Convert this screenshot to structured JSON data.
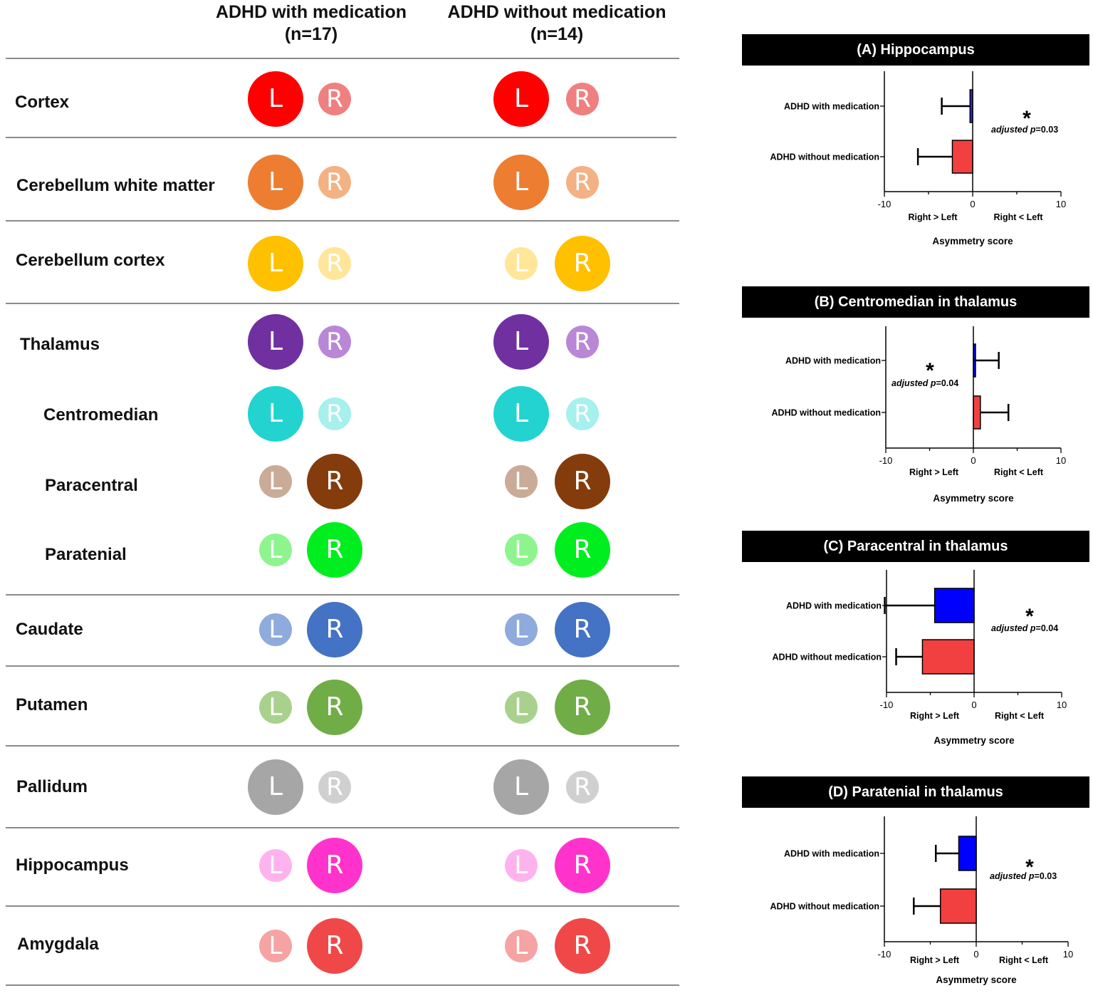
{
  "table": {
    "columns": [
      {
        "name": "ADHD with medication",
        "n": "(n=17)"
      },
      {
        "name": "ADHD without medication",
        "n": "(n=14)"
      }
    ],
    "rows": [
      {
        "region": "Cortex",
        "with": [
          "L",
          "R"
        ],
        "without": [
          "L",
          "R"
        ]
      },
      {
        "region": "Cerebellum white matter",
        "with": [
          "L",
          "R"
        ],
        "without": [
          "L",
          "R"
        ]
      },
      {
        "region": "Cerebellum cortex",
        "with": [
          "L",
          "R"
        ],
        "without": [
          "L",
          "R"
        ]
      },
      {
        "region": "Thalamus",
        "with": [
          "L",
          "R"
        ],
        "without": [
          "L",
          "R"
        ]
      },
      {
        "region": "Centromedian",
        "with": [
          "L",
          "R"
        ],
        "without": [
          "L",
          "R"
        ]
      },
      {
        "region": "Paracentral",
        "with": [
          "L",
          "R"
        ],
        "without": [
          "L",
          "R"
        ]
      },
      {
        "region": "Paratenial",
        "with": [
          "L",
          "R"
        ],
        "without": [
          "L",
          "R"
        ]
      },
      {
        "region": "Caudate",
        "with": [
          "L",
          "R"
        ],
        "without": [
          "L",
          "R"
        ]
      },
      {
        "region": "Putamen",
        "with": [
          "L",
          "R"
        ],
        "without": [
          "L",
          "R"
        ]
      },
      {
        "region": "Pallidum",
        "with": [
          "L",
          "R"
        ],
        "without": [
          "L",
          "R"
        ]
      },
      {
        "region": "Hippocampus",
        "with": [
          "L",
          "R"
        ],
        "without": [
          "L",
          "R"
        ]
      },
      {
        "region": "Amygdala",
        "with": [
          "L",
          "R"
        ],
        "without": [
          "L",
          "R"
        ]
      }
    ]
  },
  "colors": {
    "Cortex": {
      "strong": "#ff0000",
      "light": "#f08080"
    },
    "Cerebellum white matter": {
      "strong": "#ed7d31",
      "light": "#f4b183"
    },
    "Cerebellum cortex": {
      "strong": "#ffc000",
      "light": "#ffe699"
    },
    "Thalamus": {
      "strong": "#7030a0",
      "light": "#b987d6"
    },
    "Centromedian": {
      "strong": "#22d3d0",
      "light": "#a6f0ee"
    },
    "Paracentral": {
      "strong": "#843c0c",
      "light": "#c9ab97"
    },
    "Paratenial": {
      "strong": "#00ee20",
      "light": "#8ef58e"
    },
    "Caudate": {
      "strong": "#4472c4",
      "light": "#8faadc"
    },
    "Putamen": {
      "strong": "#70ad47",
      "light": "#a9d18e"
    },
    "Pallidum": {
      "strong": "#a6a6a6",
      "light": "#d0d0d0"
    },
    "Hippocampus": {
      "strong": "#ff33cc",
      "light": "#ffb3ee"
    },
    "Amygdala": {
      "strong": "#f04848",
      "light": "#f5a3a3"
    },
    "bar_with": "#0000ff",
    "bar_without": "#f24040",
    "bar_with_hippocampus": "#2b2bd6"
  },
  "chart_data": [
    {
      "type": "bar",
      "orientation": "horizontal",
      "title": "(A) Hippocampus",
      "categories": [
        "ADHD with medication",
        "ADHD without medication"
      ],
      "values": [
        -0.3,
        -2.3
      ],
      "error_bars": [
        -3.5,
        -6.2
      ],
      "xlim": [
        -10,
        10
      ],
      "xticks": [
        -10,
        0,
        10
      ],
      "xlabel": "Asymmetry score",
      "direction_labels": [
        "Right > Left",
        "Right < Left"
      ],
      "significance": {
        "marker": "*",
        "text_prefix": "adjusted ",
        "p_symbol": "p",
        "p_value": "=0.03"
      }
    },
    {
      "type": "bar",
      "orientation": "horizontal",
      "title": "(B) Centromedian  in thalamus",
      "categories": [
        "ADHD with medication",
        "ADHD without medication"
      ],
      "values": [
        0.1,
        0.8
      ],
      "error_bars": [
        2.9,
        4.0
      ],
      "xlim": [
        -10,
        10
      ],
      "xticks": [
        -10,
        0,
        10
      ],
      "xlabel": "Asymmetry score",
      "direction_labels": [
        "Right > Left",
        "Right < Left"
      ],
      "significance": {
        "marker": "*",
        "text_prefix": "adjusted ",
        "p_symbol": "p",
        "p_value": "=0.04"
      }
    },
    {
      "type": "bar",
      "orientation": "horizontal",
      "title": "(C) Paracentral  in thalamus",
      "categories": [
        "ADHD with medication",
        "ADHD without medication"
      ],
      "values": [
        -4.5,
        -5.9
      ],
      "error_bars": [
        -10.2,
        -8.9
      ],
      "xlim": [
        -10,
        10
      ],
      "xticks": [
        -10,
        0,
        10
      ],
      "xlabel": "Asymmetry score",
      "direction_labels": [
        "Right > Left",
        "Right < Left"
      ],
      "significance": {
        "marker": "*",
        "text_prefix": "adjusted ",
        "p_symbol": "p",
        "p_value": "=0.04"
      }
    },
    {
      "type": "bar",
      "orientation": "horizontal",
      "title": "(D) Paratenial  in thalamus",
      "categories": [
        "ADHD with medication",
        "ADHD without medication"
      ],
      "values": [
        -1.9,
        -3.9
      ],
      "error_bars": [
        -4.4,
        -6.8
      ],
      "xlim": [
        -10,
        10
      ],
      "xticks": [
        -10,
        0,
        10
      ],
      "xlabel": "Asymmetry score",
      "direction_labels": [
        "Right > Left",
        "Right < Left"
      ],
      "significance": {
        "marker": "*",
        "text_prefix": "adjusted ",
        "p_symbol": "p",
        "p_value": "=0.03"
      }
    }
  ]
}
